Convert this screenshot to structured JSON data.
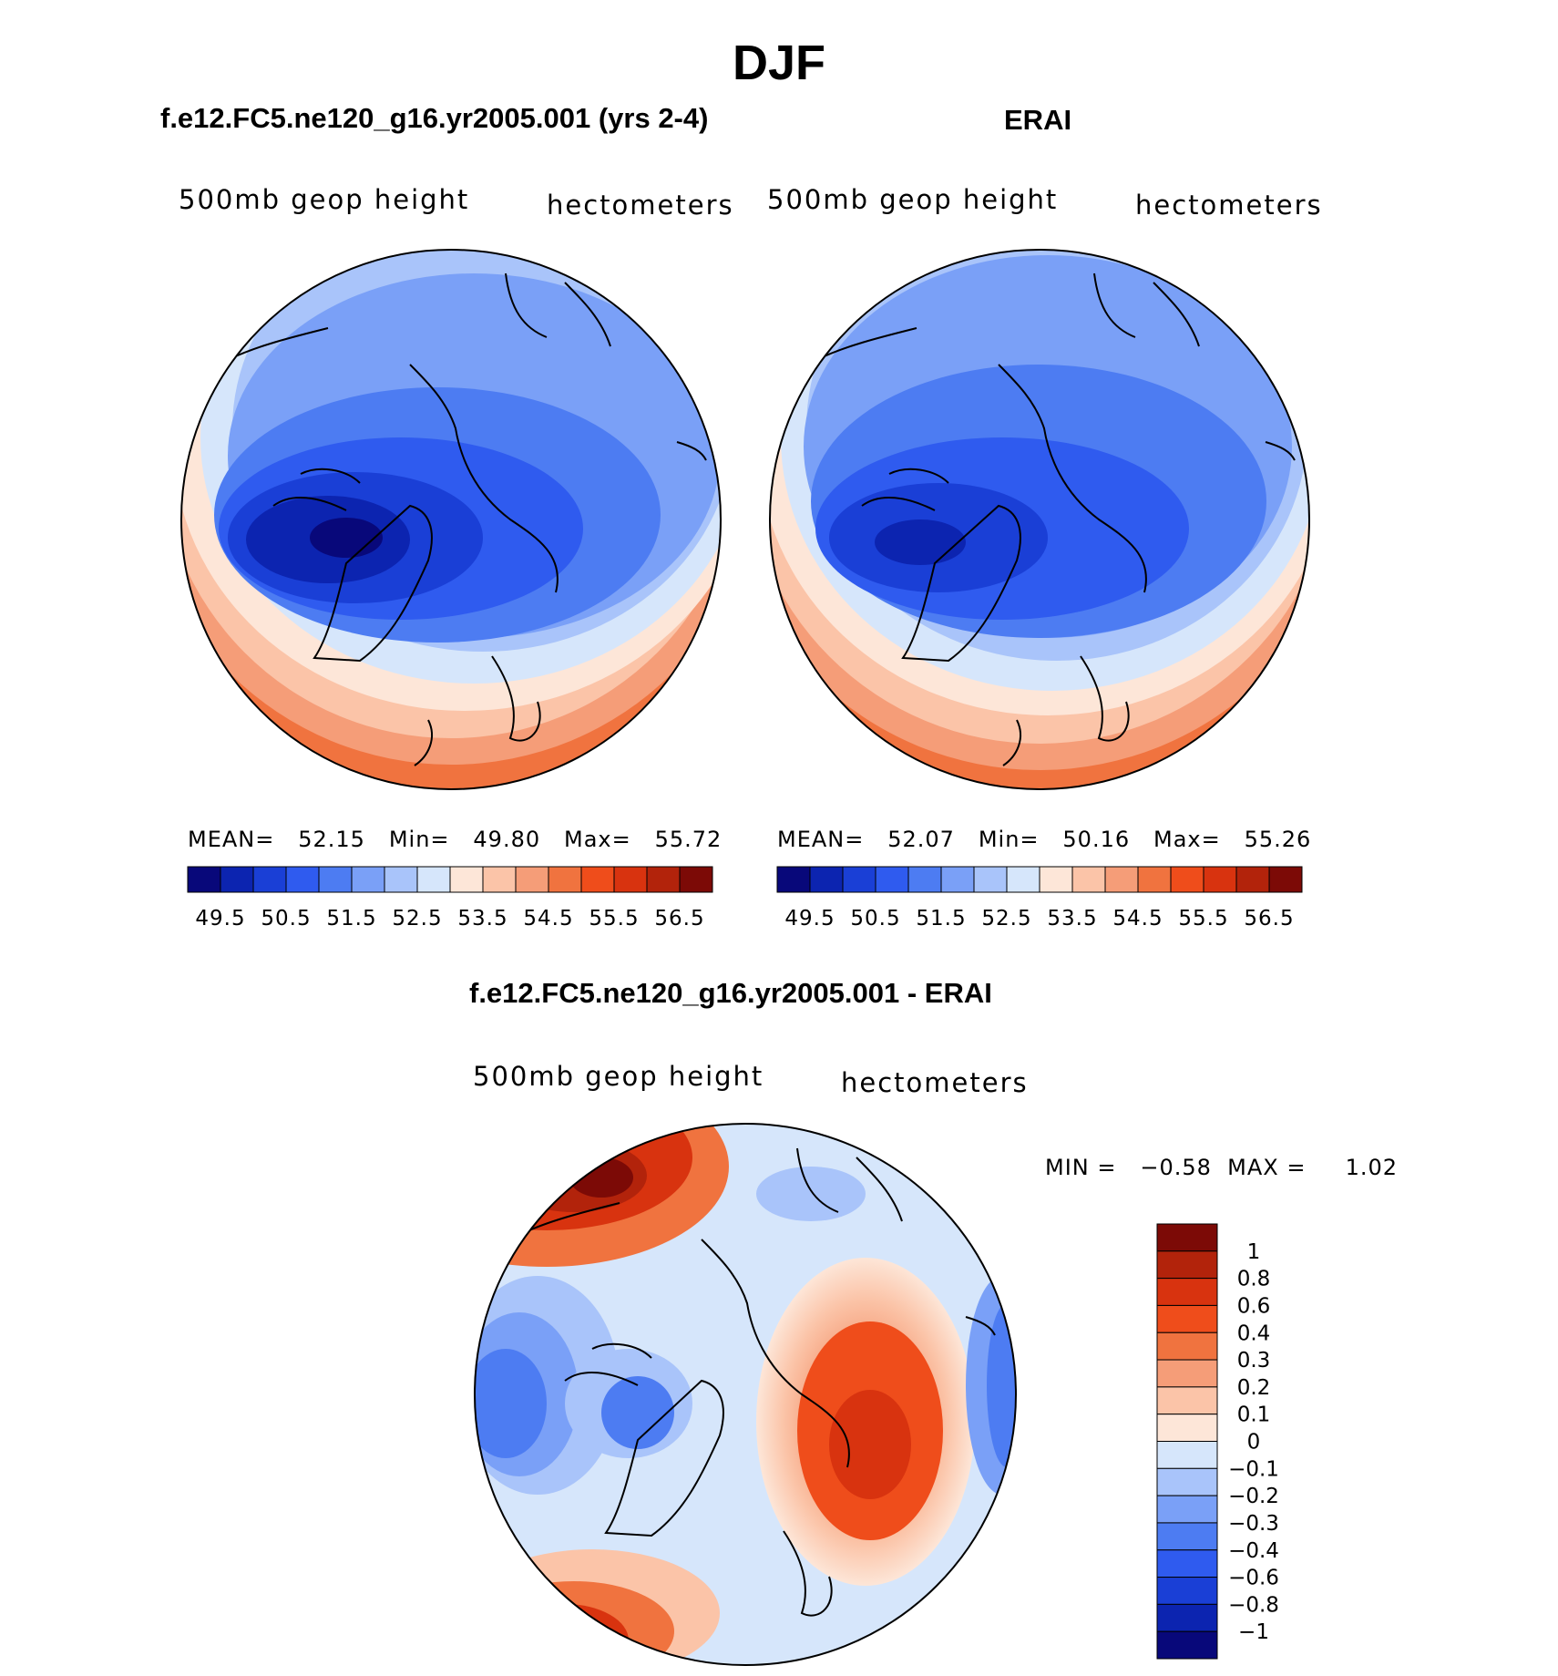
{
  "page": {
    "title": "DJF"
  },
  "panels": [
    {
      "title": "f.e12.FC5.ne120_g16.yr2005.001 (yrs 2-4)",
      "variable": "500mb geop height",
      "units": "hectometers",
      "stats": "MEAN=   52.15   Min=   49.80   Max=   55.72"
    },
    {
      "title": "ERAI",
      "variable": "500mb geop height",
      "units": "hectometers",
      "stats": "MEAN=   52.07   Min=   50.16   Max=   55.26"
    },
    {
      "title": "f.e12.FC5.ne120_g16.yr2005.001 - ERAI",
      "variable": "500mb geop height",
      "units": "hectometers",
      "stats": "MIN =   −0.58  MAX =     1.02"
    }
  ],
  "colorbar_mean": {
    "colors": [
      "#08087a",
      "#0c24b0",
      "#1a3fd6",
      "#2f5bef",
      "#4d7cf2",
      "#7aa0f7",
      "#a9c4fa",
      "#d6e6fb",
      "#fde6d8",
      "#fbc4a8",
      "#f59d78",
      "#f0733f",
      "#ef4d1b",
      "#d8330f",
      "#b2230b",
      "#7c0a06"
    ],
    "tick_labels": [
      "49.5",
      "50.5",
      "51.5",
      "52.5",
      "53.5",
      "54.5",
      "55.5",
      "56.5"
    ]
  },
  "colorbar_diff": {
    "colors": [
      "#7c0a06",
      "#b2230b",
      "#d8330f",
      "#ef4d1b",
      "#f0733f",
      "#f59d78",
      "#fbc4a8",
      "#fde6d8",
      "#d6e6fb",
      "#a9c4fa",
      "#7aa0f7",
      "#4d7cf2",
      "#2f5bef",
      "#1a3fd6",
      "#0c24b0",
      "#08087a"
    ],
    "tick_labels": [
      "1",
      "0.8",
      "0.6",
      "0.4",
      "0.3",
      "0.2",
      "0.1",
      "0",
      "−0.1",
      "−0.2",
      "−0.3",
      "−0.4",
      "−0.6",
      "−0.8",
      "−1"
    ]
  }
}
